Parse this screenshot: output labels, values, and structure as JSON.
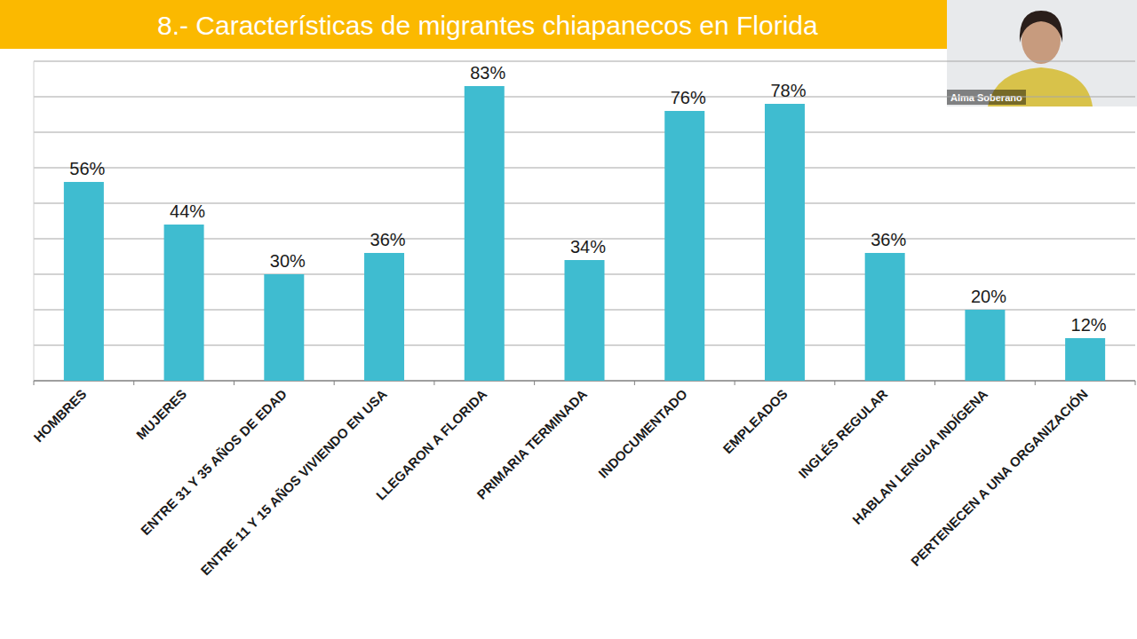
{
  "chart_data": {
    "type": "bar",
    "title": "8.- Características de migrantes chiapanecos en Florida",
    "annotations": [
      "Alma Soberano"
    ],
    "categories": [
      "HOMBRES",
      "MUJERES",
      "ENTRE 31 Y 35 AÑOS DE EDAD",
      "ENTRE 11 Y 15 AÑOS VIVIENDO EN USA",
      "LLEGARON A FLORIDA",
      "PRIMARIA TERMINADA",
      "INDOCUMENTADO",
      "EMPLEADOS",
      "INGLÉS REGULAR",
      "HABLAN LENGUA INDÍGENA",
      "PERTENECEN A UNA ORGANIZACIÓN"
    ],
    "values": [
      56,
      44,
      30,
      36,
      83,
      34,
      76,
      78,
      36,
      20,
      12
    ],
    "value_labels": [
      "56%",
      "44%",
      "30%",
      "36%",
      "83%",
      "34%",
      "76%",
      "78%",
      "36%",
      "20%",
      "12%"
    ],
    "color": "#3fbcd0",
    "ylim": [
      0,
      90
    ],
    "yticks": [
      0,
      10,
      20,
      30,
      40,
      50,
      60,
      70,
      80,
      90
    ],
    "grid": true,
    "data_labels": true,
    "tick_labels": "x"
  }
}
